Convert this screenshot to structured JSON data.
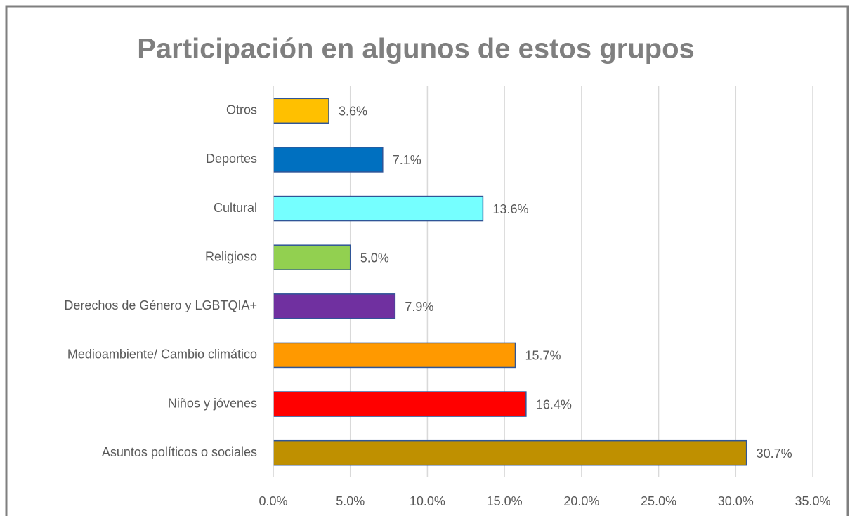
{
  "chart_data": {
    "type": "barh",
    "title": "Participación en algunos de estos grupos",
    "categories": [
      "Otros",
      "Deportes",
      "Cultural",
      "Religioso",
      "Derechos de Género y LGBTQIA+",
      "Medioambiente/ Cambio climático",
      "Niños y jóvenes",
      "Asuntos políticos o sociales"
    ],
    "values": [
      3.6,
      7.1,
      13.6,
      5.0,
      7.9,
      15.7,
      16.4,
      30.7
    ],
    "value_labels": [
      "3.6%",
      "7.1%",
      "13.6%",
      "5.0%",
      "7.9%",
      "15.7%",
      "16.4%",
      "30.7%"
    ],
    "colors": [
      "#ffc000",
      "#0070c0",
      "#75ffff",
      "#92d050",
      "#7030a0",
      "#ff9900",
      "#ff0000",
      "#bf9000"
    ],
    "xlim": [
      0,
      35
    ],
    "xticks": [
      {
        "value": 0,
        "label": "0.0%"
      },
      {
        "value": 5,
        "label": "5.0%"
      },
      {
        "value": 10,
        "label": "10.0%"
      },
      {
        "value": 15,
        "label": "15.0%"
      },
      {
        "value": 20,
        "label": "20.0%"
      },
      {
        "value": 25,
        "label": "25.0%"
      },
      {
        "value": 30,
        "label": "30.0%"
      },
      {
        "value": 35,
        "label": "35.0%"
      }
    ],
    "grid": true
  }
}
